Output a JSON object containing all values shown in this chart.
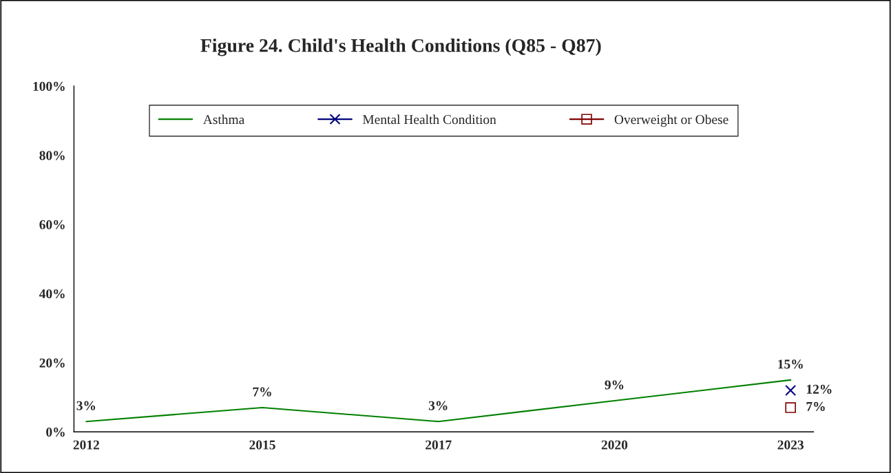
{
  "chart_data": {
    "type": "line",
    "title": "Figure 24. Child's Health Conditions (Q85 - Q87)",
    "categories": [
      "2012",
      "2015",
      "2017",
      "2020",
      "2023"
    ],
    "series": [
      {
        "name": "Asthma",
        "color": "#008000",
        "marker": "none",
        "values": [
          3,
          7,
          3,
          9,
          15
        ],
        "value_labels": [
          "3%",
          "7%",
          "3%",
          "9%",
          "15%"
        ]
      },
      {
        "name": "Mental Health Condition",
        "color": "#000080",
        "marker": "cross",
        "values": [
          null,
          null,
          null,
          null,
          12
        ],
        "value_labels": [
          null,
          null,
          null,
          null,
          "12%"
        ]
      },
      {
        "name": "Overweight or Obese",
        "color": "#800000",
        "marker": "square",
        "values": [
          null,
          null,
          null,
          null,
          7
        ],
        "value_labels": [
          null,
          null,
          null,
          null,
          "7%"
        ]
      }
    ],
    "ylim": [
      0,
      100
    ],
    "yticks": [
      {
        "value": 0,
        "label": "0%"
      },
      {
        "value": 20,
        "label": "20%"
      },
      {
        "value": 40,
        "label": "40%"
      },
      {
        "value": 60,
        "label": "60%"
      },
      {
        "value": 80,
        "label": "80%"
      },
      {
        "value": 100,
        "label": "100%"
      }
    ],
    "grid": false,
    "legend": "top"
  }
}
